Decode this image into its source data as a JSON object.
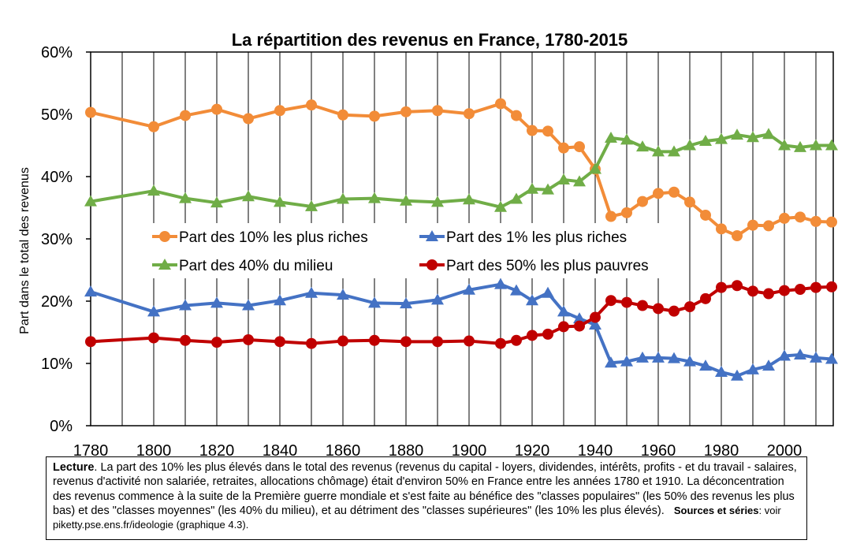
{
  "chart_data": {
    "type": "line",
    "title": "La répartition des revenus en France, 1780-2015",
    "ylabel": "Part dans le total des revenus",
    "xlabel": "",
    "xlim": [
      1780,
      2015
    ],
    "ylim": [
      0,
      60
    ],
    "x_ticks": [
      "1780",
      "1800",
      "1820",
      "1840",
      "1860",
      "1880",
      "1900",
      "1920",
      "1940",
      "1960",
      "1980",
      "2000"
    ],
    "y_ticks": [
      "0%",
      "10%",
      "20%",
      "30%",
      "40%",
      "50%",
      "60%"
    ],
    "grid": "vertical",
    "legend_position": "center-left",
    "series": [
      {
        "name": "Part des 10% les plus riches",
        "color": "#F28C38",
        "marker": "circle",
        "x": [
          1780,
          1800,
          1810,
          1820,
          1830,
          1840,
          1850,
          1860,
          1870,
          1880,
          1890,
          1900,
          1910,
          1915,
          1920,
          1925,
          1930,
          1935,
          1940,
          1945,
          1950,
          1955,
          1960,
          1965,
          1970,
          1975,
          1980,
          1985,
          1990,
          1995,
          2000,
          2005,
          2010,
          2015
        ],
        "values": [
          50.3,
          48.0,
          49.8,
          50.8,
          49.3,
          50.6,
          51.5,
          49.9,
          49.7,
          50.4,
          50.6,
          50.1,
          51.7,
          49.8,
          47.4,
          47.3,
          44.6,
          44.8,
          41.2,
          33.6,
          34.2,
          36.0,
          37.3,
          37.5,
          35.9,
          33.8,
          31.6,
          30.5,
          32.2,
          32.1,
          33.3,
          33.5,
          32.8,
          32.7
        ]
      },
      {
        "name": "Part des 1% les plus riches",
        "color": "#4472C4",
        "marker": "triangle",
        "x": [
          1780,
          1800,
          1810,
          1820,
          1830,
          1840,
          1850,
          1860,
          1870,
          1880,
          1890,
          1900,
          1910,
          1915,
          1920,
          1925,
          1930,
          1935,
          1940,
          1945,
          1950,
          1955,
          1960,
          1965,
          1970,
          1975,
          1980,
          1985,
          1990,
          1995,
          2000,
          2005,
          2010,
          2015
        ],
        "values": [
          21.5,
          18.3,
          19.3,
          19.7,
          19.3,
          20.1,
          21.3,
          21.0,
          19.7,
          19.6,
          20.2,
          21.8,
          22.7,
          21.7,
          20.1,
          21.3,
          18.3,
          17.2,
          16.2,
          10.1,
          10.3,
          10.9,
          10.9,
          10.8,
          10.3,
          9.6,
          8.6,
          8.0,
          9.0,
          9.6,
          11.2,
          11.4,
          10.9,
          10.7
        ]
      },
      {
        "name": "Part des 40% du milieu",
        "color": "#70AD47",
        "marker": "triangle",
        "x": [
          1780,
          1800,
          1810,
          1820,
          1830,
          1840,
          1850,
          1860,
          1870,
          1880,
          1890,
          1900,
          1910,
          1915,
          1920,
          1925,
          1930,
          1935,
          1940,
          1945,
          1950,
          1955,
          1960,
          1965,
          1970,
          1975,
          1980,
          1985,
          1990,
          1995,
          2000,
          2005,
          2010,
          2015
        ],
        "values": [
          36.0,
          37.7,
          36.5,
          35.8,
          36.8,
          35.9,
          35.2,
          36.4,
          36.5,
          36.1,
          35.9,
          36.3,
          35.1,
          36.4,
          38.0,
          37.9,
          39.5,
          39.2,
          41.2,
          46.2,
          45.9,
          44.8,
          44.0,
          44.0,
          45.0,
          45.7,
          46.0,
          46.7,
          46.3,
          46.8,
          45.0,
          44.7,
          45.0,
          45.0
        ]
      },
      {
        "name": "Part des 50% les plus pauvres",
        "color": "#C00000",
        "marker": "circle",
        "x": [
          1780,
          1800,
          1810,
          1820,
          1830,
          1840,
          1850,
          1860,
          1870,
          1880,
          1890,
          1900,
          1910,
          1915,
          1920,
          1925,
          1930,
          1935,
          1940,
          1945,
          1950,
          1955,
          1960,
          1965,
          1970,
          1975,
          1980,
          1985,
          1990,
          1995,
          2000,
          2005,
          2010,
          2015
        ],
        "values": [
          13.5,
          14.1,
          13.7,
          13.4,
          13.8,
          13.5,
          13.2,
          13.6,
          13.7,
          13.5,
          13.5,
          13.6,
          13.2,
          13.7,
          14.5,
          14.7,
          15.9,
          16.0,
          17.4,
          20.1,
          19.8,
          19.3,
          18.8,
          18.4,
          19.1,
          20.4,
          22.2,
          22.5,
          21.6,
          21.2,
          21.7,
          21.9,
          22.2,
          22.3
        ]
      }
    ]
  },
  "note": {
    "lead": "Lecture",
    "body": ". La part des 10% les plus élevés dans le total des revenus (revenus du capital - loyers, dividendes, intérêts, profits - et du travail - salaires, revenus d'activité non salariée, retraites, allocations chômage) était d'environ 50% en France entre les années 1780 et 1910. La déconcentration des revenus commence à la suite de la Première guerre mondiale et s'est faite au bénéfice des \"classes populaires\" (les 50% des revenus les plus bas) et des \"classes moyennes\" (les 40% du milieu), et au détriment des \"classes supérieures\" (les 10% les plus élevés).",
    "sources_label": "Sources et séries",
    "sources_text": ": voir piketty.pse.ens.fr/ideologie (graphique 4.3)."
  }
}
